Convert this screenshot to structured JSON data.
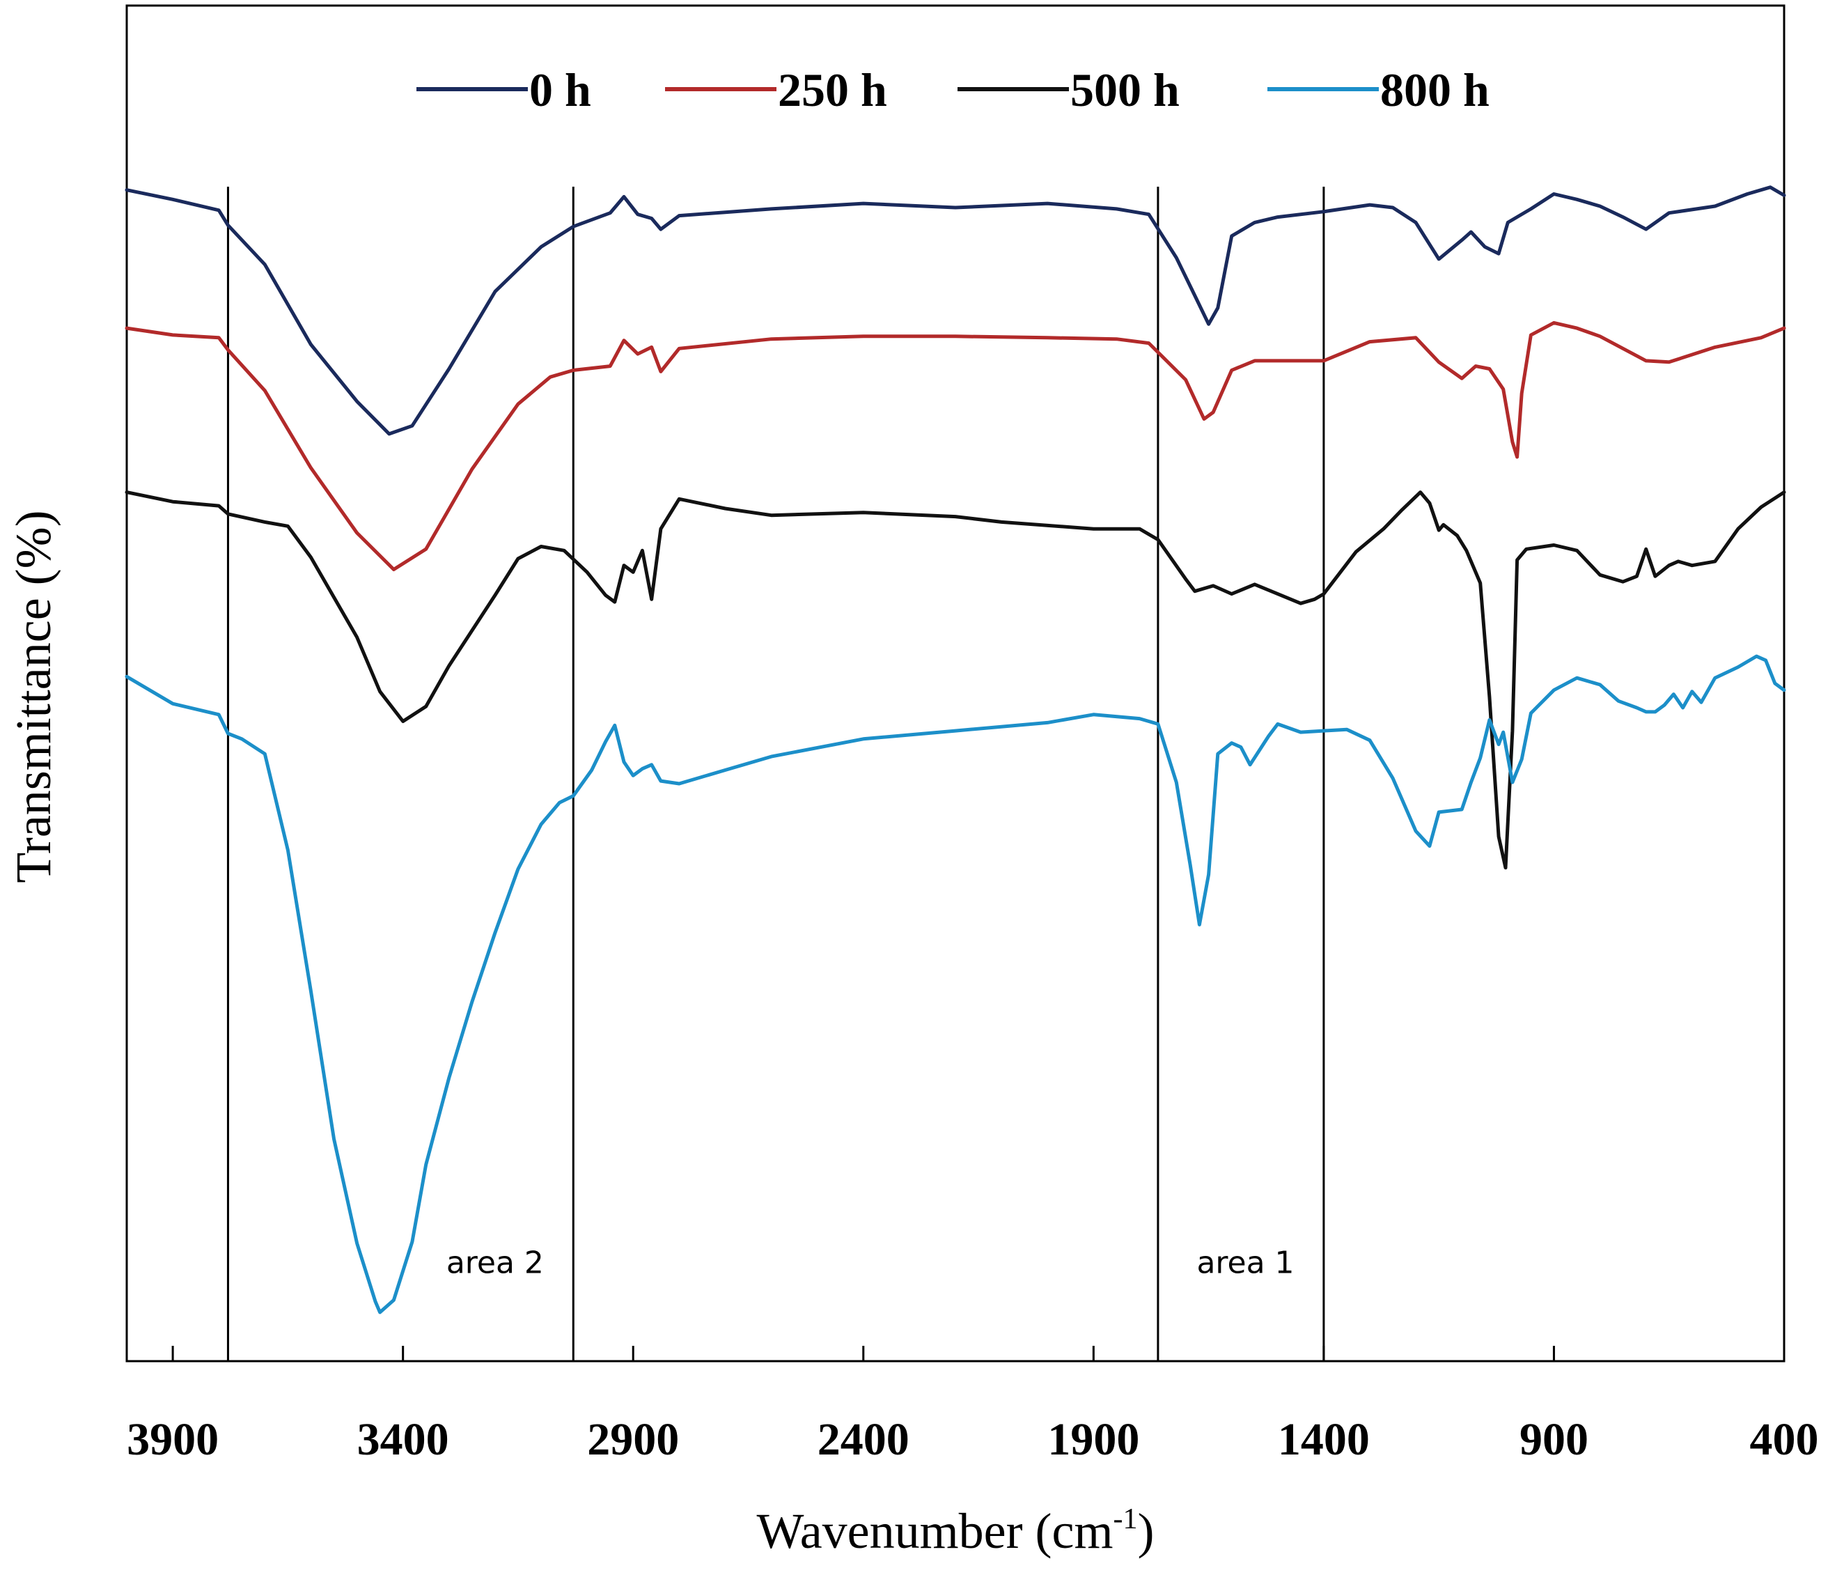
{
  "chart_data": {
    "type": "line",
    "title": "",
    "xlabel": "Wavenumber (cm",
    "xlabel_sup": "-1",
    "xlabel_close": ")",
    "ylabel": "Transmittance (%)",
    "xlim": [
      4000,
      400
    ],
    "ylim": [
      0,
      100
    ],
    "x_ticks": [
      {
        "value": 3900,
        "label": "3900"
      },
      {
        "value": 3400,
        "label": "3400"
      },
      {
        "value": 2900,
        "label": "2900"
      },
      {
        "value": 2400,
        "label": "2400"
      },
      {
        "value": 1900,
        "label": "1900"
      },
      {
        "value": 1400,
        "label": "1400"
      },
      {
        "value": 900,
        "label": "900"
      },
      {
        "value": 400,
        "label": "400"
      }
    ],
    "region_lines": [
      3780,
      3030,
      1760,
      1400
    ],
    "annotations": [
      {
        "text": "area 2",
        "x": 3200,
        "y": 6.5
      },
      {
        "text": "area 1",
        "x": 1570,
        "y": 6.5
      }
    ],
    "legend": [
      {
        "name": "0 h",
        "color": "#1a2a5c"
      },
      {
        "name": "250 h",
        "color": "#b22a2a"
      },
      {
        "name": "500 h",
        "color": "#111111"
      },
      {
        "name": "800 h",
        "color": "#1c8fc9"
      }
    ],
    "series": [
      {
        "name": "0 h",
        "color": "#1a2a5c",
        "points": [
          [
            4000,
            86.4
          ],
          [
            3900,
            85.7
          ],
          [
            3800,
            84.9
          ],
          [
            3780,
            83.8
          ],
          [
            3700,
            80.9
          ],
          [
            3600,
            75.0
          ],
          [
            3500,
            70.8
          ],
          [
            3430,
            68.4
          ],
          [
            3380,
            69.0
          ],
          [
            3300,
            73.2
          ],
          [
            3200,
            78.9
          ],
          [
            3100,
            82.2
          ],
          [
            3030,
            83.7
          ],
          [
            2950,
            84.7
          ],
          [
            2920,
            85.9
          ],
          [
            2890,
            84.6
          ],
          [
            2860,
            84.3
          ],
          [
            2840,
            83.5
          ],
          [
            2800,
            84.5
          ],
          [
            2600,
            85.0
          ],
          [
            2400,
            85.4
          ],
          [
            2200,
            85.1
          ],
          [
            2000,
            85.4
          ],
          [
            1850,
            85.0
          ],
          [
            1780,
            84.6
          ],
          [
            1720,
            81.4
          ],
          [
            1680,
            78.6
          ],
          [
            1650,
            76.5
          ],
          [
            1630,
            77.7
          ],
          [
            1600,
            83.0
          ],
          [
            1550,
            84.0
          ],
          [
            1500,
            84.4
          ],
          [
            1400,
            84.8
          ],
          [
            1300,
            85.3
          ],
          [
            1250,
            85.1
          ],
          [
            1200,
            84.0
          ],
          [
            1150,
            81.3
          ],
          [
            1100,
            82.7
          ],
          [
            1080,
            83.3
          ],
          [
            1050,
            82.2
          ],
          [
            1020,
            81.7
          ],
          [
            1000,
            84.0
          ],
          [
            950,
            85.0
          ],
          [
            900,
            86.1
          ],
          [
            850,
            85.7
          ],
          [
            800,
            85.2
          ],
          [
            750,
            84.4
          ],
          [
            700,
            83.5
          ],
          [
            650,
            84.7
          ],
          [
            550,
            85.2
          ],
          [
            480,
            86.1
          ],
          [
            430,
            86.6
          ],
          [
            400,
            86.0
          ]
        ]
      },
      {
        "name": "250 h",
        "color": "#b22a2a",
        "points": [
          [
            4000,
            76.2
          ],
          [
            3900,
            75.7
          ],
          [
            3800,
            75.5
          ],
          [
            3780,
            74.6
          ],
          [
            3700,
            71.6
          ],
          [
            3600,
            65.9
          ],
          [
            3500,
            61.1
          ],
          [
            3420,
            58.4
          ],
          [
            3350,
            59.9
          ],
          [
            3250,
            65.8
          ],
          [
            3150,
            70.6
          ],
          [
            3080,
            72.6
          ],
          [
            3030,
            73.1
          ],
          [
            2950,
            73.4
          ],
          [
            2920,
            75.3
          ],
          [
            2890,
            74.3
          ],
          [
            2860,
            74.8
          ],
          [
            2840,
            73.0
          ],
          [
            2800,
            74.7
          ],
          [
            2600,
            75.4
          ],
          [
            2400,
            75.6
          ],
          [
            2200,
            75.6
          ],
          [
            2000,
            75.5
          ],
          [
            1850,
            75.4
          ],
          [
            1780,
            75.1
          ],
          [
            1700,
            72.4
          ],
          [
            1660,
            69.5
          ],
          [
            1640,
            70.0
          ],
          [
            1600,
            73.1
          ],
          [
            1550,
            73.8
          ],
          [
            1400,
            73.8
          ],
          [
            1300,
            75.2
          ],
          [
            1200,
            75.5
          ],
          [
            1150,
            73.7
          ],
          [
            1100,
            72.5
          ],
          [
            1070,
            73.4
          ],
          [
            1040,
            73.2
          ],
          [
            1010,
            71.7
          ],
          [
            990,
            67.8
          ],
          [
            980,
            66.7
          ],
          [
            970,
            71.4
          ],
          [
            950,
            75.7
          ],
          [
            900,
            76.6
          ],
          [
            850,
            76.2
          ],
          [
            800,
            75.6
          ],
          [
            700,
            73.8
          ],
          [
            650,
            73.7
          ],
          [
            550,
            74.8
          ],
          [
            450,
            75.5
          ],
          [
            400,
            76.2
          ]
        ]
      },
      {
        "name": "500 h",
        "color": "#111111",
        "points": [
          [
            4000,
            64.1
          ],
          [
            3900,
            63.4
          ],
          [
            3800,
            63.1
          ],
          [
            3780,
            62.5
          ],
          [
            3700,
            61.9
          ],
          [
            3650,
            61.6
          ],
          [
            3600,
            59.3
          ],
          [
            3500,
            53.4
          ],
          [
            3450,
            49.4
          ],
          [
            3400,
            47.2
          ],
          [
            3350,
            48.3
          ],
          [
            3300,
            51.3
          ],
          [
            3200,
            56.5
          ],
          [
            3150,
            59.2
          ],
          [
            3100,
            60.1
          ],
          [
            3050,
            59.8
          ],
          [
            3000,
            58.2
          ],
          [
            2960,
            56.5
          ],
          [
            2940,
            56.0
          ],
          [
            2920,
            58.7
          ],
          [
            2900,
            58.2
          ],
          [
            2880,
            59.8
          ],
          [
            2860,
            56.2
          ],
          [
            2840,
            61.4
          ],
          [
            2800,
            63.6
          ],
          [
            2700,
            62.9
          ],
          [
            2600,
            62.4
          ],
          [
            2400,
            62.6
          ],
          [
            2200,
            62.3
          ],
          [
            2100,
            61.9
          ],
          [
            1900,
            61.4
          ],
          [
            1800,
            61.4
          ],
          [
            1760,
            60.6
          ],
          [
            1700,
            57.7
          ],
          [
            1680,
            56.8
          ],
          [
            1640,
            57.2
          ],
          [
            1600,
            56.6
          ],
          [
            1550,
            57.3
          ],
          [
            1500,
            56.6
          ],
          [
            1450,
            55.9
          ],
          [
            1420,
            56.2
          ],
          [
            1400,
            56.6
          ],
          [
            1330,
            59.7
          ],
          [
            1270,
            61.4
          ],
          [
            1230,
            62.8
          ],
          [
            1190,
            64.1
          ],
          [
            1170,
            63.3
          ],
          [
            1150,
            61.3
          ],
          [
            1140,
            61.7
          ],
          [
            1110,
            60.9
          ],
          [
            1090,
            59.8
          ],
          [
            1060,
            57.4
          ],
          [
            1040,
            49.0
          ],
          [
            1020,
            38.7
          ],
          [
            1005,
            36.4
          ],
          [
            990,
            46.5
          ],
          [
            980,
            59.1
          ],
          [
            960,
            59.9
          ],
          [
            900,
            60.2
          ],
          [
            850,
            59.8
          ],
          [
            800,
            58.0
          ],
          [
            750,
            57.5
          ],
          [
            720,
            57.9
          ],
          [
            700,
            59.9
          ],
          [
            680,
            57.9
          ],
          [
            650,
            58.7
          ],
          [
            630,
            59.0
          ],
          [
            600,
            58.7
          ],
          [
            550,
            59.0
          ],
          [
            500,
            61.4
          ],
          [
            450,
            63.0
          ],
          [
            400,
            64.1
          ]
        ]
      },
      {
        "name": "800 h",
        "color": "#1c8fc9",
        "points": [
          [
            4000,
            50.5
          ],
          [
            3900,
            48.5
          ],
          [
            3800,
            47.7
          ],
          [
            3780,
            46.3
          ],
          [
            3750,
            45.9
          ],
          [
            3700,
            44.8
          ],
          [
            3650,
            37.7
          ],
          [
            3600,
            27.3
          ],
          [
            3550,
            16.4
          ],
          [
            3500,
            8.7
          ],
          [
            3460,
            4.4
          ],
          [
            3450,
            3.6
          ],
          [
            3420,
            4.5
          ],
          [
            3380,
            8.8
          ],
          [
            3350,
            14.5
          ],
          [
            3300,
            20.9
          ],
          [
            3250,
            26.5
          ],
          [
            3200,
            31.6
          ],
          [
            3150,
            36.3
          ],
          [
            3100,
            39.6
          ],
          [
            3060,
            41.2
          ],
          [
            3030,
            41.7
          ],
          [
            2990,
            43.6
          ],
          [
            2960,
            45.7
          ],
          [
            2940,
            46.9
          ],
          [
            2920,
            44.2
          ],
          [
            2900,
            43.2
          ],
          [
            2880,
            43.7
          ],
          [
            2860,
            44.0
          ],
          [
            2840,
            42.8
          ],
          [
            2800,
            42.6
          ],
          [
            2700,
            43.6
          ],
          [
            2600,
            44.6
          ],
          [
            2400,
            45.9
          ],
          [
            2200,
            46.5
          ],
          [
            2000,
            47.1
          ],
          [
            1900,
            47.7
          ],
          [
            1800,
            47.4
          ],
          [
            1760,
            47.0
          ],
          [
            1720,
            42.7
          ],
          [
            1690,
            36.6
          ],
          [
            1670,
            32.2
          ],
          [
            1650,
            35.9
          ],
          [
            1630,
            44.8
          ],
          [
            1600,
            45.6
          ],
          [
            1580,
            45.3
          ],
          [
            1560,
            44.0
          ],
          [
            1520,
            46.1
          ],
          [
            1500,
            47.0
          ],
          [
            1450,
            46.4
          ],
          [
            1400,
            46.5
          ],
          [
            1350,
            46.6
          ],
          [
            1300,
            45.8
          ],
          [
            1250,
            43.0
          ],
          [
            1200,
            39.1
          ],
          [
            1170,
            38.0
          ],
          [
            1150,
            40.5
          ],
          [
            1100,
            40.7
          ],
          [
            1080,
            42.7
          ],
          [
            1060,
            44.5
          ],
          [
            1040,
            47.3
          ],
          [
            1020,
            45.5
          ],
          [
            1010,
            46.4
          ],
          [
            990,
            42.7
          ],
          [
            970,
            44.4
          ],
          [
            950,
            47.8
          ],
          [
            900,
            49.5
          ],
          [
            850,
            50.4
          ],
          [
            800,
            49.9
          ],
          [
            760,
            48.7
          ],
          [
            720,
            48.2
          ],
          [
            700,
            47.9
          ],
          [
            680,
            47.9
          ],
          [
            660,
            48.4
          ],
          [
            640,
            49.2
          ],
          [
            620,
            48.2
          ],
          [
            600,
            49.4
          ],
          [
            580,
            48.6
          ],
          [
            550,
            50.4
          ],
          [
            500,
            51.2
          ],
          [
            460,
            52.0
          ],
          [
            440,
            51.7
          ],
          [
            420,
            50.0
          ],
          [
            400,
            49.5
          ]
        ]
      }
    ]
  }
}
